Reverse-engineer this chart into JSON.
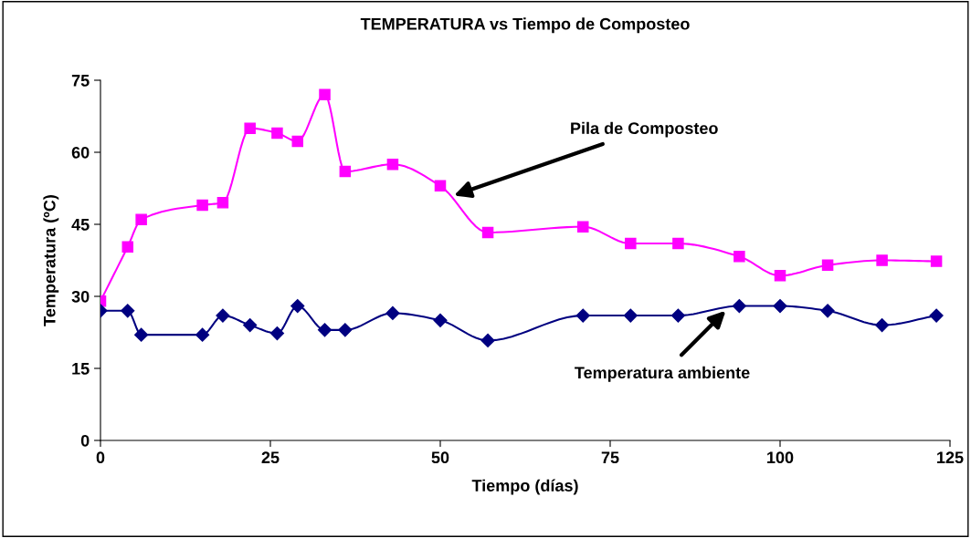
{
  "chart_data": {
    "type": "line",
    "title": "TEMPERATURA vs Tiempo de Composteo",
    "xlabel": "Tiempo (días)",
    "ylabel": "Temperatura (ºC)",
    "x": [
      0,
      4,
      6,
      15,
      18,
      22,
      26,
      29,
      33,
      36,
      43,
      50,
      57,
      71,
      78,
      85,
      94,
      100,
      107,
      115,
      123
    ],
    "series": [
      {
        "color": "#ff00ff",
        "marker": "square",
        "values": [
          29,
          40.3,
          46,
          49,
          49.5,
          65,
          64,
          62.3,
          72,
          56,
          57.5,
          53,
          43.3,
          44.5,
          41,
          41,
          38.3,
          34.3,
          36.5,
          37.5,
          37.3
        ]
      },
      {
        "color": "#000080",
        "marker": "diamond",
        "values": [
          27,
          27,
          22,
          22,
          26,
          24,
          22.3,
          28,
          23,
          23,
          26.5,
          25,
          20.8,
          26,
          26,
          26,
          28,
          28,
          27,
          24,
          26
        ]
      }
    ],
    "annotations": [
      {
        "text": "Pila de Composteo",
        "x": 52,
        "y": 51
      },
      {
        "text": "Temperatura ambiente",
        "x": 92,
        "y": 27
      }
    ],
    "xlim": [
      0,
      125
    ],
    "xticks": [
      0,
      25,
      50,
      75,
      100,
      125
    ],
    "ylim": [
      0,
      75
    ],
    "yticks": [
      0,
      15,
      30,
      45,
      60,
      75
    ],
    "grid": false,
    "legend": false,
    "line_style": "solid"
  }
}
